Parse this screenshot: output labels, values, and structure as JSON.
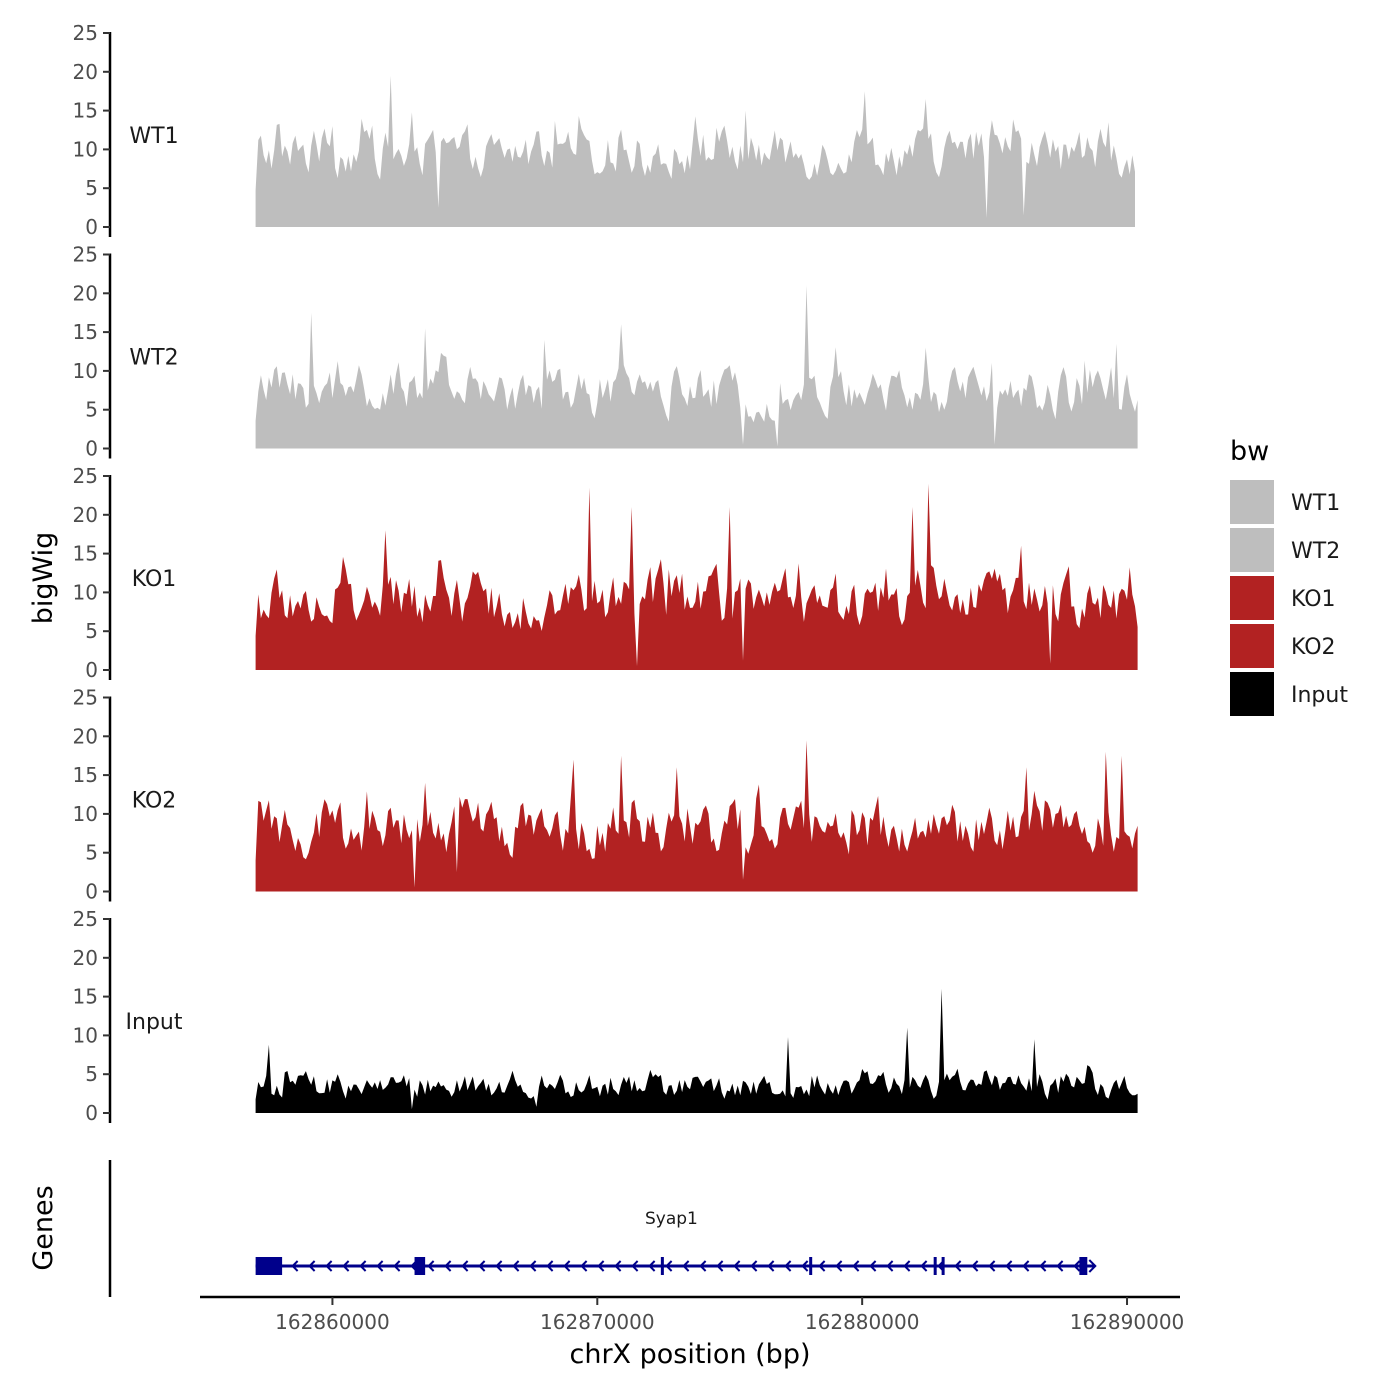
{
  "chart_data": {
    "type": "area",
    "title": "",
    "xlabel": "chrX position (bp)",
    "ylabel": "bigWig",
    "genes_label": "Genes",
    "xlim": [
      162855000,
      162892000
    ],
    "ylim": [
      0,
      25
    ],
    "x_ticks": [
      162860000,
      162870000,
      162880000,
      162890000
    ],
    "x_tick_labels": [
      "162860000",
      "162870000",
      "162880000",
      "162890000"
    ],
    "y_ticks": [
      0,
      5,
      10,
      15,
      20,
      25
    ],
    "y_tick_labels": [
      "0",
      "5",
      "10",
      "15",
      "20",
      "25"
    ],
    "legend": {
      "title": "bw",
      "placement": "right",
      "entries": [
        {
          "label": "WT1",
          "color": "#bebebe"
        },
        {
          "label": "WT2",
          "color": "#bebebe"
        },
        {
          "label": "KO1",
          "color": "#b22222"
        },
        {
          "label": "KO2",
          "color": "#b22222"
        },
        {
          "label": "Input",
          "color": "#000000"
        }
      ]
    },
    "x_start": 162857100,
    "x_end": 162890400,
    "tracks": [
      {
        "name": "WT1",
        "color": "#bebebe",
        "mean": 9.5,
        "variation": 4.5,
        "x_end": 162890300,
        "peaks": [
          [
            162860000,
            13
          ],
          [
            162862200,
            19.5
          ],
          [
            162869300,
            14.3
          ],
          [
            162875600,
            15
          ],
          [
            162880100,
            17.5
          ],
          [
            162882400,
            16.5
          ],
          [
            162889300,
            13.5
          ]
        ],
        "dips": [
          [
            162864000,
            2.5
          ],
          [
            162884700,
            1.2
          ],
          [
            162886100,
            1.5
          ]
        ]
      },
      {
        "name": "WT2",
        "color": "#bebebe",
        "mean": 7.2,
        "variation": 4.5,
        "x_end": 162890400,
        "peaks": [
          [
            162859200,
            17.5
          ],
          [
            162863500,
            15.5
          ],
          [
            162868000,
            14
          ],
          [
            162870900,
            16
          ],
          [
            162877900,
            21
          ],
          [
            162882400,
            13
          ],
          [
            162889600,
            13.5
          ]
        ],
        "dips": [
          [
            162875500,
            0.5
          ],
          [
            162885000,
            0.5
          ],
          [
            162876800,
            0.3
          ]
        ]
      },
      {
        "name": "KO1",
        "color": "#b22222",
        "mean": 8.8,
        "variation": 5.5,
        "x_end": 162890400,
        "peaks": [
          [
            162862000,
            18
          ],
          [
            162869700,
            23.5
          ],
          [
            162871300,
            21
          ],
          [
            162875000,
            21
          ],
          [
            162881900,
            21
          ],
          [
            162882500,
            24
          ],
          [
            162886000,
            16
          ]
        ],
        "dips": [
          [
            162871500,
            0.5
          ],
          [
            162875500,
            1.2
          ],
          [
            162887100,
            0.8
          ]
        ]
      },
      {
        "name": "KO2",
        "color": "#b22222",
        "mean": 8.0,
        "variation": 5,
        "x_end": 162890400,
        "peaks": [
          [
            162863500,
            14
          ],
          [
            162869100,
            17
          ],
          [
            162870900,
            17.5
          ],
          [
            162873000,
            16
          ],
          [
            162877900,
            19.5
          ],
          [
            162886200,
            16
          ],
          [
            162889200,
            18
          ],
          [
            162889800,
            17.5
          ]
        ],
        "dips": [
          [
            162863100,
            0.5
          ],
          [
            162864700,
            2.5
          ],
          [
            162875500,
            1.5
          ]
        ]
      },
      {
        "name": "Input",
        "color": "#000000",
        "mean": 3.5,
        "variation": 2.5,
        "x_end": 162890400,
        "peaks": [
          [
            162883000,
            16
          ],
          [
            162881700,
            11
          ],
          [
            162857600,
            8.8
          ],
          [
            162877200,
            9.8
          ],
          [
            162886500,
            9.5
          ]
        ],
        "dips": [
          [
            162858100,
            2
          ],
          [
            162863000,
            0.5
          ],
          [
            162867700,
            0.8
          ]
        ]
      }
    ],
    "genes": [
      {
        "name": "Syap1",
        "color": "#00008b",
        "strand": "-",
        "start": 162857100,
        "end": 162888500,
        "exons": [
          [
            162857100,
            162858100
          ],
          [
            162863100,
            162863500
          ],
          [
            162872400,
            162872500
          ],
          [
            162878000,
            162878100
          ],
          [
            162882700,
            162882800
          ],
          [
            162883000,
            162883100
          ],
          [
            162888200,
            162888500
          ]
        ]
      }
    ]
  }
}
